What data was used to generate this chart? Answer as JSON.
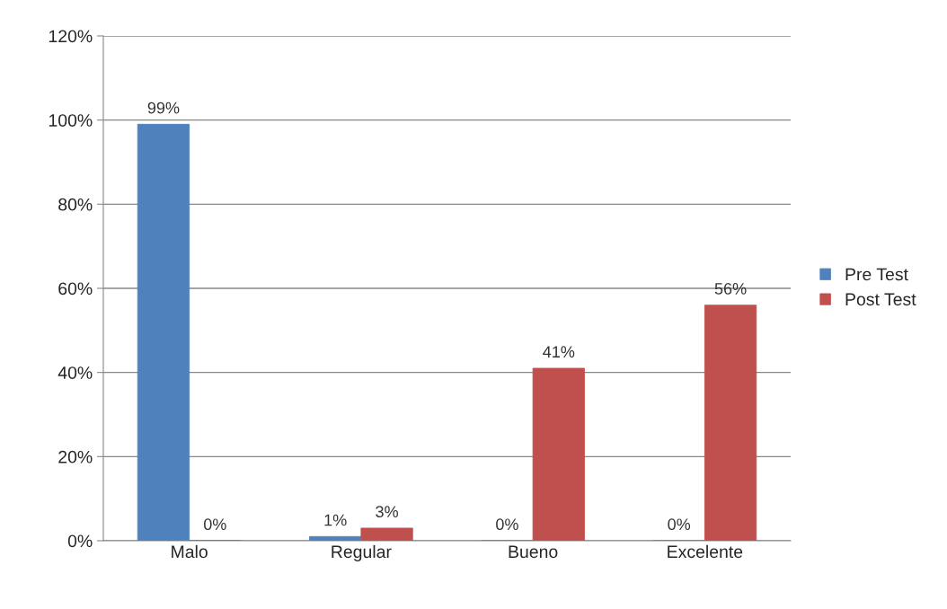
{
  "chart_data": {
    "type": "bar",
    "categories": [
      "Malo",
      "Regular",
      "Bueno",
      "Excelente"
    ],
    "series": [
      {
        "name": "Pre Test",
        "color": "#4f81bd",
        "values": [
          99,
          1,
          0,
          0
        ],
        "value_labels": [
          "99%",
          "1%",
          "0%",
          "0%"
        ]
      },
      {
        "name": "Post Test",
        "color": "#c0504d",
        "values": [
          0,
          3,
          41,
          56
        ],
        "value_labels": [
          "0%",
          "3%",
          "41%",
          "56%"
        ]
      }
    ],
    "ylim": [
      0,
      120
    ],
    "yticks": [
      {
        "value": 0,
        "label": "0%"
      },
      {
        "value": 20,
        "label": "20%"
      },
      {
        "value": 40,
        "label": "40%"
      },
      {
        "value": 60,
        "label": "60%"
      },
      {
        "value": 80,
        "label": "80%"
      },
      {
        "value": 100,
        "label": "100%"
      },
      {
        "value": 120,
        "label": "120%"
      }
    ],
    "grid": "y",
    "legend": "right"
  }
}
